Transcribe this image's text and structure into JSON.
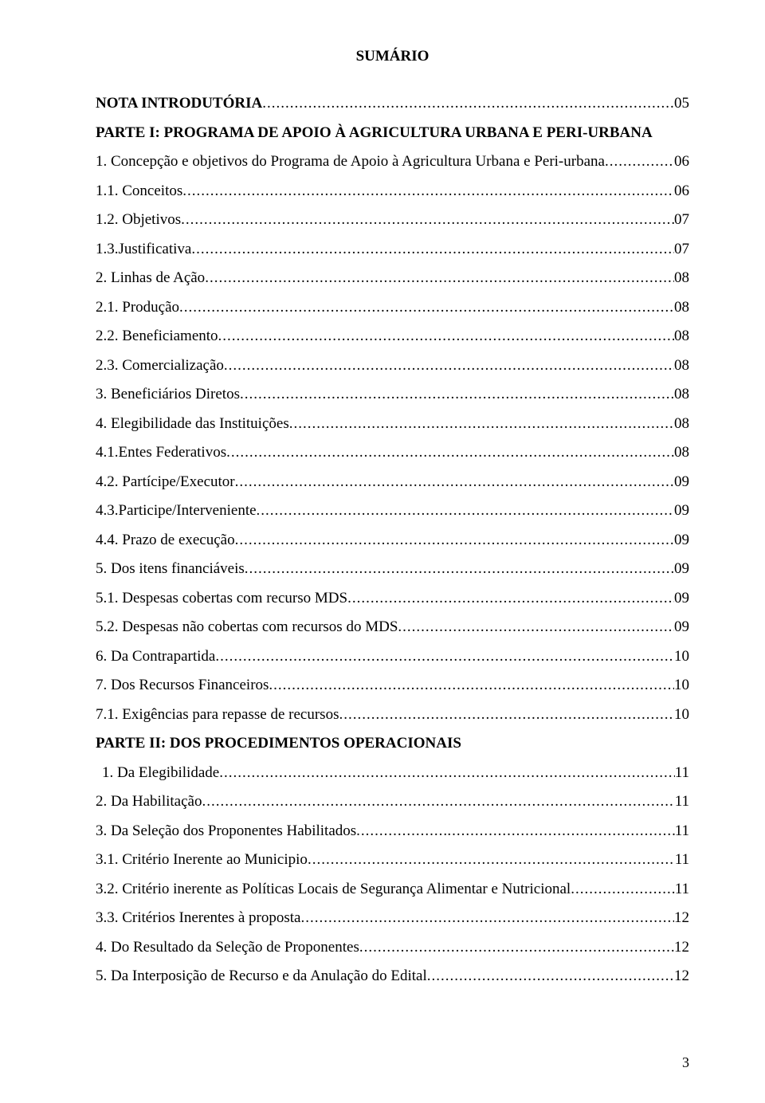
{
  "title": "SUMÁRIO",
  "page_number": "3",
  "colors": {
    "background": "#ffffff",
    "text": "#000000"
  },
  "typography": {
    "font_family": "Times New Roman",
    "title_fontsize": 19,
    "body_fontsize": 19,
    "line_spacing": 17.5
  },
  "entries": [
    {
      "text": "NOTA INTRODUTÓRIA",
      "page": "05",
      "bold": true
    },
    {
      "text": "PARTE I: PROGRAMA DE APOIO À AGRICULTURA URBANA E PERI-URBANA",
      "bold": true,
      "no_page": true
    },
    {
      "text": "1. Concepção e objetivos do Programa de Apoio à Agricultura Urbana e Peri-urbana",
      "page": "06"
    },
    {
      "text": "1.1. Conceitos",
      "page": "06"
    },
    {
      "text": "1.2. Objetivos",
      "page": "07"
    },
    {
      "text": "1.3.Justificativa",
      "page": "07"
    },
    {
      "text": "2. Linhas de Ação",
      "page": "08"
    },
    {
      "text": "2.1. Produção",
      "page": "08"
    },
    {
      "text": "2.2. Beneficiamento",
      "page": "08"
    },
    {
      "text": "2.3. Comercialização",
      "page": "08"
    },
    {
      "text": "3. Beneficiários Diretos",
      "page": "08"
    },
    {
      "text": "4. Elegibilidade das Instituições",
      "page": "08"
    },
    {
      "text": "4.1.Entes Federativos",
      "page": "08"
    },
    {
      "text": "4.2. Partícipe/Executor",
      "page": "09"
    },
    {
      "text": "4.3.Participe/Interveniente",
      "page": "09"
    },
    {
      "text": "4.4. Prazo de execução",
      "page": "09"
    },
    {
      "text": "5. Dos itens financiáveis",
      "page": "09"
    },
    {
      "text": "5.1. Despesas cobertas com recurso MDS",
      "page": "09"
    },
    {
      "text": "5.2. Despesas não cobertas com recursos do MDS",
      "page": "09"
    },
    {
      "text": "6. Da  Contrapartida",
      "page": "10"
    },
    {
      "text": "7. Dos Recursos Financeiros",
      "page": "10"
    },
    {
      "text": "7.1. Exigências para repasse de recursos",
      "page": "10"
    },
    {
      "text": "PARTE II: DOS PROCEDIMENTOS OPERACIONAIS",
      "bold": true,
      "no_page": true
    },
    {
      "text": "1. Da Elegibilidade",
      "page": "11",
      "indent": true
    },
    {
      "text": "2. Da Habilitação",
      "page": "11"
    },
    {
      "text": "3. Da Seleção dos Proponentes Habilitados ",
      "page": "11",
      "split_dots": true
    },
    {
      "text": "3.1. Critério Inerente ao Municipio",
      "page": " 11"
    },
    {
      "text": "3.2. Critério inerente as Políticas Locais de Segurança Alimentar e Nutricional",
      "page": "11"
    },
    {
      "text": "3.3. Critérios Inerentes à proposta",
      "page": "12"
    },
    {
      "text": "4. Do Resultado da Seleção de Proponentes",
      "page": "12"
    },
    {
      "text": "5. Da Interposição de Recurso e da Anulação do Edital",
      "page": "12"
    }
  ]
}
